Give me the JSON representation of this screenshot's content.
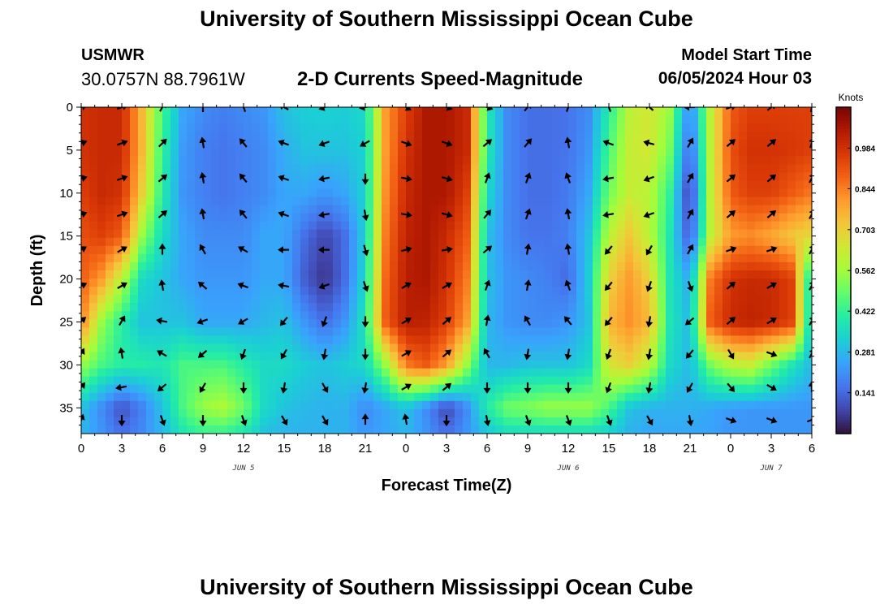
{
  "header": {
    "title": "University of Southern Mississippi Ocean Cube",
    "station": "USMWR",
    "coords": "30.0757N  88.7961W",
    "subtitle": "2-D Currents Speed-Magnitude",
    "model_start_label": "Model Start Time",
    "model_start_value": "06/05/2024 Hour 03"
  },
  "footer": {
    "title": "University of Southern Mississippi Ocean Cube"
  },
  "colors": {
    "scale": [
      "#30123b",
      "#4145ab",
      "#4675ed",
      "#39a2fc",
      "#1bcfd4",
      "#24eca6",
      "#61fc6c",
      "#a4fc3b",
      "#d1e834",
      "#f3c63a",
      "#fe9b2d",
      "#f36315",
      "#d93806",
      "#b11901",
      "#7a0403"
    ]
  },
  "chart_data": {
    "type": "heatmap",
    "title": "2-D Currents Speed-Magnitude",
    "xlabel": "Forecast Time(Z)",
    "ylabel": "Depth (ft)",
    "x_ticks": [
      "0",
      "3",
      "6",
      "9",
      "12",
      "15",
      "18",
      "21",
      "0",
      "3",
      "6",
      "9",
      "12",
      "15",
      "18",
      "21",
      "0",
      "3",
      "6"
    ],
    "x_hours": [
      0,
      3,
      6,
      9,
      12,
      15,
      18,
      21,
      24,
      27,
      30,
      33,
      36,
      39,
      42,
      45,
      48,
      51,
      54
    ],
    "xlim": [
      0,
      54
    ],
    "y_ticks": [
      0,
      5,
      10,
      15,
      20,
      25,
      30,
      35
    ],
    "ylim": [
      0,
      38
    ],
    "date_labels": [
      {
        "text": "JUN 5",
        "hour": 12
      },
      {
        "text": "JUN 6",
        "hour": 36
      },
      {
        "text": "JUN 7",
        "hour": 51
      }
    ],
    "colorbar": {
      "title": "Knots",
      "ticks": [
        0.984,
        0.844,
        0.703,
        0.562,
        0.422,
        0.281,
        0.141
      ],
      "range": [
        0.0,
        1.125
      ]
    },
    "speed_depths": [
      0,
      5,
      10,
      15,
      20,
      25,
      30,
      35,
      38
    ],
    "speed_hours": [
      0,
      1.5,
      3,
      4.5,
      6,
      7.5,
      9,
      10.5,
      12,
      13.5,
      15,
      16.5,
      18,
      19.5,
      21,
      22.5,
      24,
      25.5,
      27,
      28.5,
      30,
      31.5,
      33,
      34.5,
      36,
      37.5,
      39,
      40.5,
      42,
      43.5,
      45,
      46.5,
      48,
      49.5,
      51,
      52.5,
      54
    ],
    "speed": [
      [
        0.98,
        1.0,
        1.0,
        0.75,
        0.45,
        0.25,
        0.2,
        0.18,
        0.2,
        0.22,
        0.3,
        0.32,
        0.33,
        0.32,
        0.35,
        0.8,
        0.95,
        1.05,
        1.05,
        1.0,
        0.4,
        0.2,
        0.15,
        0.15,
        0.16,
        0.2,
        0.4,
        0.6,
        0.65,
        0.55,
        0.18,
        0.6,
        0.9,
        0.95,
        0.95,
        0.95,
        0.95
      ],
      [
        0.98,
        1.0,
        1.0,
        0.75,
        0.42,
        0.23,
        0.18,
        0.16,
        0.18,
        0.2,
        0.26,
        0.3,
        0.3,
        0.3,
        0.33,
        0.8,
        0.98,
        1.05,
        1.05,
        1.0,
        0.4,
        0.2,
        0.15,
        0.15,
        0.16,
        0.22,
        0.45,
        0.62,
        0.65,
        0.5,
        0.12,
        0.6,
        0.92,
        0.98,
        0.98,
        0.97,
        0.95
      ],
      [
        0.95,
        1.0,
        0.98,
        0.7,
        0.4,
        0.22,
        0.18,
        0.16,
        0.18,
        0.2,
        0.25,
        0.25,
        0.22,
        0.25,
        0.33,
        0.82,
        1.0,
        1.05,
        1.05,
        0.95,
        0.35,
        0.2,
        0.15,
        0.15,
        0.17,
        0.25,
        0.5,
        0.62,
        0.6,
        0.42,
        0.05,
        0.6,
        0.9,
        0.95,
        0.95,
        0.9,
        0.85
      ],
      [
        0.92,
        0.95,
        0.9,
        0.55,
        0.35,
        0.25,
        0.2,
        0.2,
        0.2,
        0.25,
        0.25,
        0.15,
        0.08,
        0.15,
        0.33,
        0.85,
        1.02,
        1.05,
        1.0,
        0.9,
        0.3,
        0.2,
        0.16,
        0.16,
        0.18,
        0.3,
        0.6,
        0.72,
        0.6,
        0.38,
        0.1,
        0.6,
        0.8,
        0.82,
        0.78,
        0.72,
        0.68
      ],
      [
        0.9,
        0.8,
        0.6,
        0.35,
        0.3,
        0.25,
        0.22,
        0.22,
        0.22,
        0.25,
        0.25,
        0.12,
        0.05,
        0.15,
        0.35,
        0.88,
        1.03,
        1.05,
        0.98,
        0.85,
        0.3,
        0.22,
        0.2,
        0.18,
        0.14,
        0.32,
        0.7,
        0.8,
        0.7,
        0.38,
        0.25,
        0.85,
        0.98,
        1.0,
        1.0,
        0.95,
        0.3
      ],
      [
        0.85,
        0.55,
        0.4,
        0.3,
        0.3,
        0.3,
        0.25,
        0.25,
        0.25,
        0.28,
        0.3,
        0.22,
        0.15,
        0.22,
        0.38,
        0.9,
        1.03,
        1.02,
        0.95,
        0.8,
        0.28,
        0.22,
        0.2,
        0.2,
        0.22,
        0.3,
        0.75,
        0.82,
        0.75,
        0.38,
        0.28,
        0.9,
        1.0,
        1.02,
        1.0,
        0.95,
        0.28
      ],
      [
        0.55,
        0.45,
        0.4,
        0.4,
        0.38,
        0.45,
        0.45,
        0.45,
        0.4,
        0.35,
        0.35,
        0.32,
        0.3,
        0.32,
        0.35,
        0.55,
        0.85,
        0.9,
        0.8,
        0.55,
        0.28,
        0.28,
        0.3,
        0.3,
        0.3,
        0.35,
        0.65,
        0.7,
        0.6,
        0.35,
        0.28,
        0.5,
        0.6,
        0.62,
        0.5,
        0.38,
        0.28
      ],
      [
        0.3,
        0.2,
        0.1,
        0.18,
        0.3,
        0.45,
        0.55,
        0.58,
        0.5,
        0.35,
        0.3,
        0.28,
        0.27,
        0.27,
        0.2,
        0.25,
        0.3,
        0.2,
        0.08,
        0.2,
        0.4,
        0.5,
        0.52,
        0.55,
        0.55,
        0.55,
        0.45,
        0.3,
        0.27,
        0.27,
        0.27,
        0.25,
        0.23,
        0.22,
        0.22,
        0.22,
        0.22
      ],
      [
        0.28,
        0.22,
        0.15,
        0.2,
        0.28,
        0.38,
        0.42,
        0.42,
        0.38,
        0.3,
        0.27,
        0.27,
        0.27,
        0.27,
        0.22,
        0.25,
        0.28,
        0.22,
        0.15,
        0.22,
        0.3,
        0.35,
        0.35,
        0.35,
        0.35,
        0.35,
        0.32,
        0.27,
        0.25,
        0.25,
        0.25,
        0.24,
        0.22,
        0.22,
        0.22,
        0.22,
        0.22
      ]
    ],
    "vector_hours": [
      0,
      3,
      6,
      9,
      12,
      15,
      18,
      21,
      24,
      27,
      30,
      33,
      36,
      39,
      42,
      45,
      48,
      51,
      54
    ],
    "vector_depths": [
      0,
      4.2,
      8.3,
      12.5,
      16.6,
      20.8,
      24.9,
      28.7,
      32.6,
      36.4
    ],
    "vector_angles_deg": [
      [
        20,
        20,
        60,
        90,
        110,
        150,
        200,
        190,
        330,
        340,
        340,
        50,
        70,
        110,
        140,
        180,
        20,
        40,
        80
      ],
      [
        20,
        20,
        45,
        100,
        130,
        160,
        200,
        210,
        340,
        340,
        40,
        50,
        100,
        160,
        165,
        60,
        40,
        40,
        70
      ],
      [
        15,
        20,
        40,
        100,
        130,
        160,
        190,
        270,
        350,
        345,
        70,
        70,
        110,
        190,
        200,
        60,
        40,
        40,
        60
      ],
      [
        20,
        20,
        40,
        100,
        130,
        160,
        190,
        280,
        350,
        345,
        50,
        70,
        100,
        190,
        200,
        60,
        40,
        40,
        60
      ],
      [
        30,
        30,
        90,
        120,
        150,
        180,
        180,
        285,
        15,
        10,
        40,
        80,
        100,
        230,
        240,
        60,
        20,
        20,
        60
      ],
      [
        25,
        30,
        100,
        140,
        160,
        170,
        200,
        290,
        30,
        30,
        70,
        80,
        110,
        230,
        250,
        290,
        40,
        30,
        60
      ],
      [
        40,
        60,
        170,
        200,
        210,
        230,
        250,
        270,
        30,
        40,
        80,
        120,
        130,
        230,
        260,
        220,
        40,
        30,
        60
      ],
      [
        60,
        100,
        150,
        220,
        250,
        240,
        260,
        270,
        30,
        40,
        120,
        260,
        260,
        250,
        260,
        230,
        300,
        340,
        60
      ],
      [
        50,
        190,
        220,
        240,
        270,
        260,
        300,
        260,
        30,
        40,
        270,
        270,
        270,
        250,
        260,
        240,
        310,
        330,
        90
      ],
      [
        70,
        270,
        290,
        270,
        290,
        300,
        300,
        90,
        100,
        270,
        280,
        290,
        290,
        290,
        300,
        280,
        340,
        340,
        20
      ]
    ]
  }
}
